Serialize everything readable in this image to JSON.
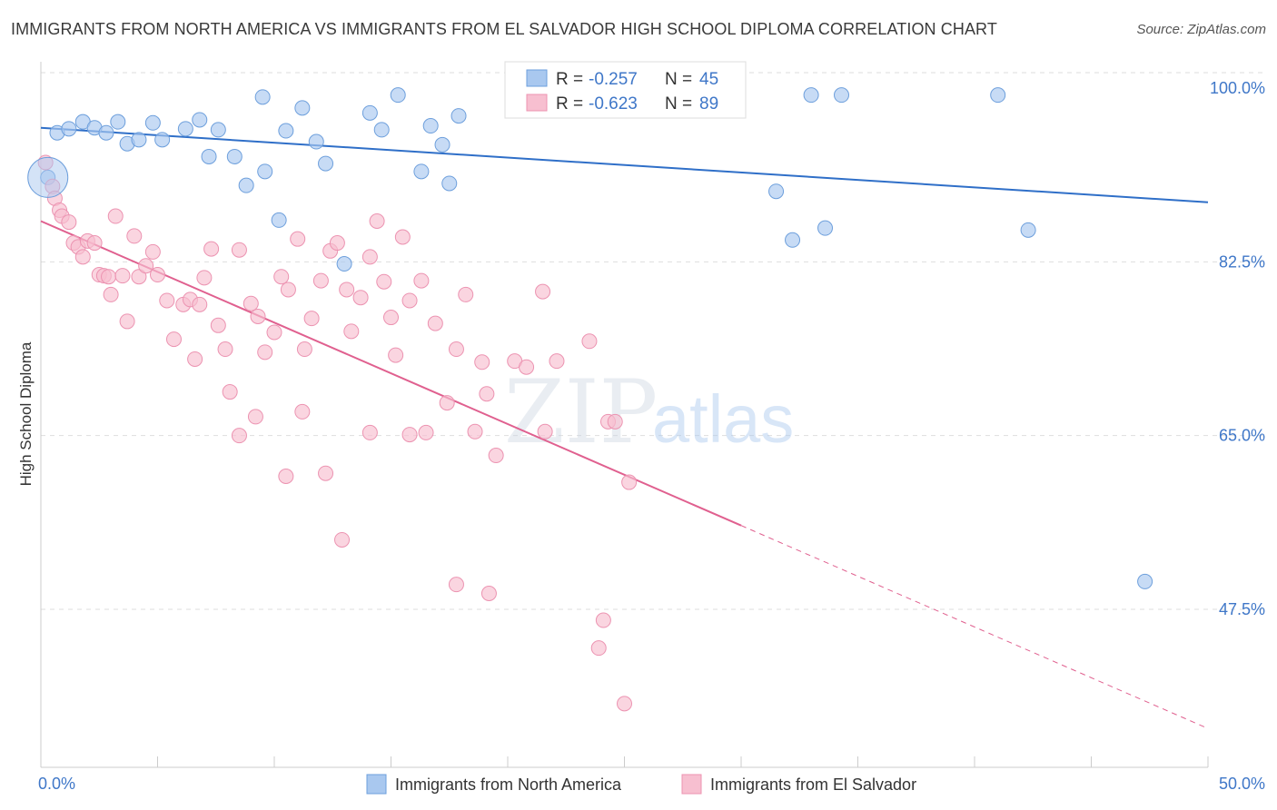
{
  "title": "IMMIGRANTS FROM NORTH AMERICA VS IMMIGRANTS FROM EL SALVADOR HIGH SCHOOL DIPLOMA CORRELATION CHART",
  "source": "Source: ZipAtlas.com",
  "watermark": {
    "zip": "ZIP",
    "atlas": "atlas"
  },
  "colors": {
    "blue_fill": "#a9c8ef",
    "blue_stroke": "#6d9fdc",
    "blue_line": "#2f6fc8",
    "pink_fill": "#f7bfd0",
    "pink_stroke": "#ec93b1",
    "pink_line": "#e0608f",
    "axis_text": "#3f77c8",
    "grid": "#dddddd"
  },
  "legend": {
    "rows": [
      {
        "r_label": "R = ",
        "r_value": "-0.257",
        "n_label": "N = ",
        "n_value": "45"
      },
      {
        "r_label": "R = ",
        "r_value": "-0.623",
        "n_label": "N = ",
        "n_value": "89"
      }
    ]
  },
  "chart_data": {
    "type": "scatter",
    "title": "IMMIGRANTS FROM NORTH AMERICA VS IMMIGRANTS FROM EL SALVADOR HIGH SCHOOL DIPLOMA CORRELATION CHART",
    "xlabel": "",
    "ylabel": "High School Diploma",
    "xlim": [
      0,
      50
    ],
    "ylim": [
      30,
      100
    ],
    "x_tick_labels": [
      "0.0%",
      "50.0%"
    ],
    "y_ticks": [
      {
        "value": 100,
        "label": "100.0%"
      },
      {
        "value": 82.5,
        "label": "82.5%"
      },
      {
        "value": 65,
        "label": "65.0%"
      },
      {
        "value": 47.5,
        "label": "47.5%"
      }
    ],
    "grid": true,
    "legend_position": "top-center",
    "series": [
      {
        "name": "Immigrants from North America",
        "color": "#a9c8ef",
        "trend": {
          "x0": 0,
          "y0": 96.0,
          "x1": 50,
          "y1": 88.5,
          "dashed_from": null
        },
        "points": [
          [
            0.3,
            91.0
          ],
          [
            0.7,
            95.5
          ],
          [
            1.2,
            95.9
          ],
          [
            1.8,
            96.6
          ],
          [
            2.3,
            96.0
          ],
          [
            2.8,
            95.5
          ],
          [
            3.3,
            96.6
          ],
          [
            3.7,
            94.4
          ],
          [
            4.2,
            94.8
          ],
          [
            4.8,
            96.5
          ],
          [
            5.2,
            94.8
          ],
          [
            6.2,
            95.9
          ],
          [
            6.8,
            96.8
          ],
          [
            7.2,
            93.1
          ],
          [
            7.6,
            95.8
          ],
          [
            8.3,
            93.1
          ],
          [
            8.8,
            90.2
          ],
          [
            9.5,
            99.1
          ],
          [
            9.6,
            91.6
          ],
          [
            10.2,
            86.7
          ],
          [
            10.5,
            95.7
          ],
          [
            11.2,
            98.0
          ],
          [
            11.8,
            94.6
          ],
          [
            12.2,
            92.4
          ],
          [
            13.0,
            82.3
          ],
          [
            14.1,
            97.5
          ],
          [
            14.6,
            95.8
          ],
          [
            15.3,
            99.3
          ],
          [
            16.3,
            91.6
          ],
          [
            16.7,
            96.2
          ],
          [
            17.2,
            94.3
          ],
          [
            17.5,
            90.4
          ],
          [
            17.9,
            97.2
          ],
          [
            22.2,
            99.3
          ],
          [
            22.9,
            99.3
          ],
          [
            23.7,
            99.3
          ],
          [
            26.3,
            99.3
          ],
          [
            31.5,
            89.6
          ],
          [
            33.0,
            99.3
          ],
          [
            34.3,
            99.3
          ],
          [
            41.0,
            99.3
          ],
          [
            32.2,
            84.7
          ],
          [
            33.6,
            85.9
          ],
          [
            42.3,
            85.7
          ],
          [
            47.3,
            50.3
          ]
        ]
      },
      {
        "name": "Immigrants from El Salvador",
        "color": "#f7bfd0",
        "trend": {
          "x0": 0,
          "y0": 86.6,
          "x1": 50,
          "y1": 35.5,
          "dashed_from": 30.0
        },
        "points": [
          [
            0.2,
            92.5
          ],
          [
            0.5,
            90.1
          ],
          [
            0.6,
            88.9
          ],
          [
            0.8,
            87.7
          ],
          [
            0.9,
            87.1
          ],
          [
            1.2,
            86.5
          ],
          [
            1.4,
            84.4
          ],
          [
            1.6,
            84.0
          ],
          [
            1.8,
            83.0
          ],
          [
            2.0,
            84.6
          ],
          [
            2.3,
            84.4
          ],
          [
            2.5,
            81.2
          ],
          [
            2.7,
            81.1
          ],
          [
            2.9,
            81.0
          ],
          [
            3.0,
            79.2
          ],
          [
            3.2,
            87.1
          ],
          [
            3.5,
            81.1
          ],
          [
            3.7,
            76.5
          ],
          [
            4.0,
            85.1
          ],
          [
            4.2,
            81.0
          ],
          [
            4.5,
            82.1
          ],
          [
            4.8,
            83.5
          ],
          [
            5.0,
            81.2
          ],
          [
            5.4,
            78.6
          ],
          [
            5.7,
            74.7
          ],
          [
            6.1,
            78.2
          ],
          [
            6.4,
            78.7
          ],
          [
            6.6,
            72.7
          ],
          [
            6.8,
            78.2
          ],
          [
            7.0,
            80.9
          ],
          [
            7.3,
            83.8
          ],
          [
            7.6,
            76.1
          ],
          [
            7.9,
            73.7
          ],
          [
            8.1,
            69.4
          ],
          [
            8.5,
            83.7
          ],
          [
            9.0,
            78.3
          ],
          [
            9.3,
            77.0
          ],
          [
            9.6,
            73.4
          ],
          [
            10.0,
            75.4
          ],
          [
            10.3,
            81.0
          ],
          [
            10.6,
            79.7
          ],
          [
            11.0,
            84.8
          ],
          [
            11.3,
            73.7
          ],
          [
            11.6,
            76.8
          ],
          [
            12.0,
            80.6
          ],
          [
            12.4,
            83.6
          ],
          [
            12.7,
            84.4
          ],
          [
            13.1,
            79.7
          ],
          [
            13.3,
            75.5
          ],
          [
            13.7,
            78.9
          ],
          [
            14.1,
            83.0
          ],
          [
            14.4,
            86.6
          ],
          [
            14.7,
            80.5
          ],
          [
            15.0,
            76.9
          ],
          [
            15.2,
            73.1
          ],
          [
            15.5,
            85.0
          ],
          [
            15.8,
            78.6
          ],
          [
            16.3,
            80.6
          ],
          [
            16.9,
            76.3
          ],
          [
            17.4,
            68.3
          ],
          [
            17.8,
            73.7
          ],
          [
            18.2,
            79.2
          ],
          [
            18.6,
            65.4
          ],
          [
            18.9,
            72.4
          ],
          [
            19.1,
            69.2
          ],
          [
            19.5,
            63.0
          ],
          [
            20.3,
            72.5
          ],
          [
            20.8,
            71.9
          ],
          [
            21.5,
            79.5
          ],
          [
            22.1,
            72.5
          ],
          [
            23.5,
            74.5
          ],
          [
            24.3,
            66.4
          ],
          [
            24.6,
            66.4
          ],
          [
            25.2,
            60.3
          ],
          [
            10.5,
            60.9
          ],
          [
            12.2,
            61.2
          ],
          [
            15.8,
            65.1
          ],
          [
            12.9,
            54.5
          ],
          [
            17.8,
            50.0
          ],
          [
            19.2,
            49.1
          ],
          [
            23.9,
            43.6
          ],
          [
            24.1,
            46.4
          ],
          [
            25.0,
            38.0
          ],
          [
            8.5,
            65.0
          ],
          [
            9.2,
            66.9
          ],
          [
            11.2,
            67.4
          ],
          [
            14.1,
            65.3
          ],
          [
            16.5,
            65.3
          ],
          [
            21.6,
            65.4
          ]
        ]
      }
    ]
  },
  "bottom_legend": [
    {
      "label": "Immigrants from North America"
    },
    {
      "label": "Immigrants from El Salvador"
    }
  ]
}
